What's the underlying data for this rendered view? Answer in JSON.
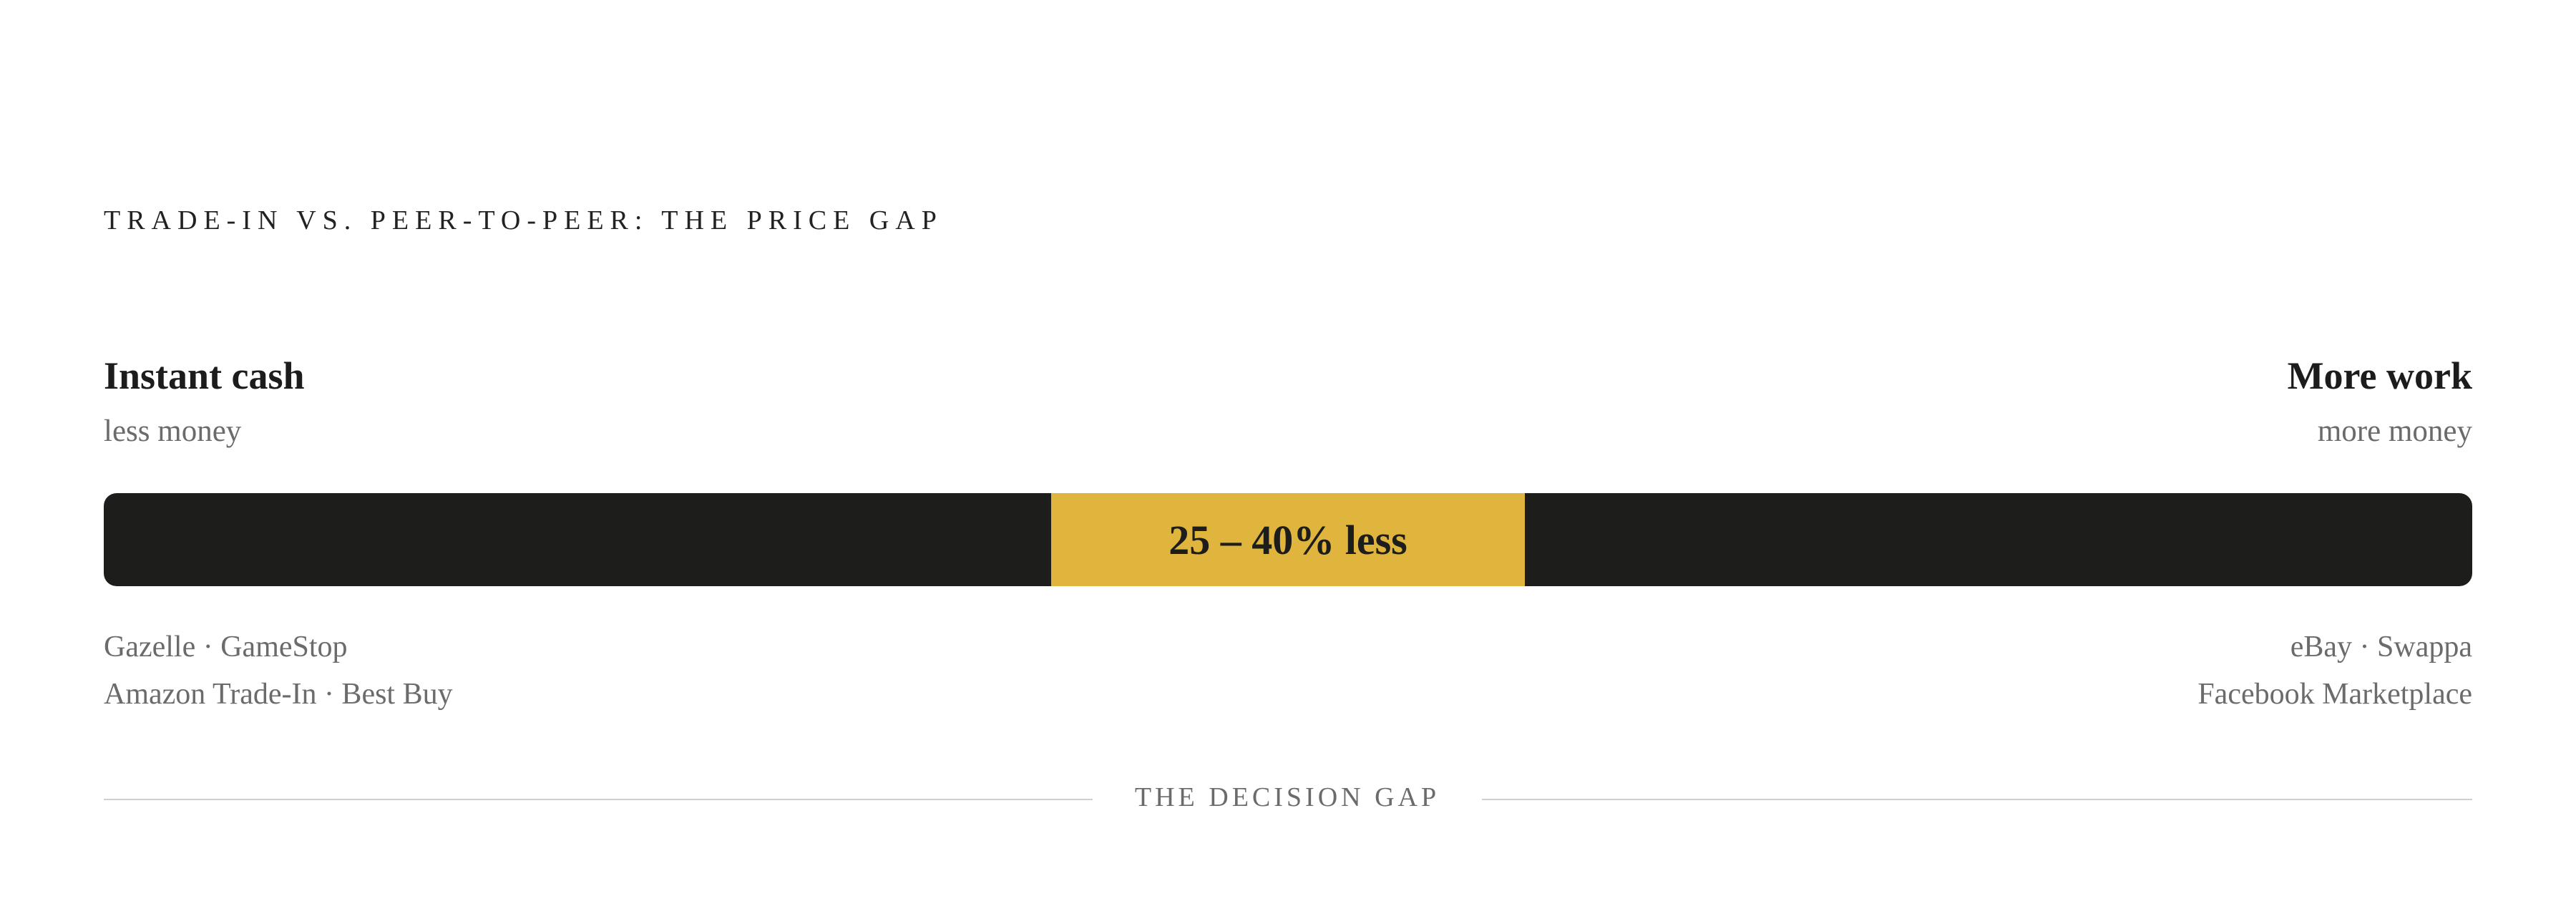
{
  "header": {
    "title": "TRADE-IN VS. PEER-TO-PEER: THE PRICE GAP"
  },
  "left": {
    "heading": "Instant cash",
    "subheading": "less money",
    "sources": [
      "Gazelle · GameStop",
      "Amazon Trade-In · Best Buy"
    ]
  },
  "right": {
    "heading": "More work",
    "subheading": "more money",
    "sources": [
      "eBay · Swappa",
      "Facebook Marketplace"
    ]
  },
  "bar": {
    "label": "25 – 40% less"
  },
  "footer": {
    "label": "THE DECISION GAP"
  }
}
